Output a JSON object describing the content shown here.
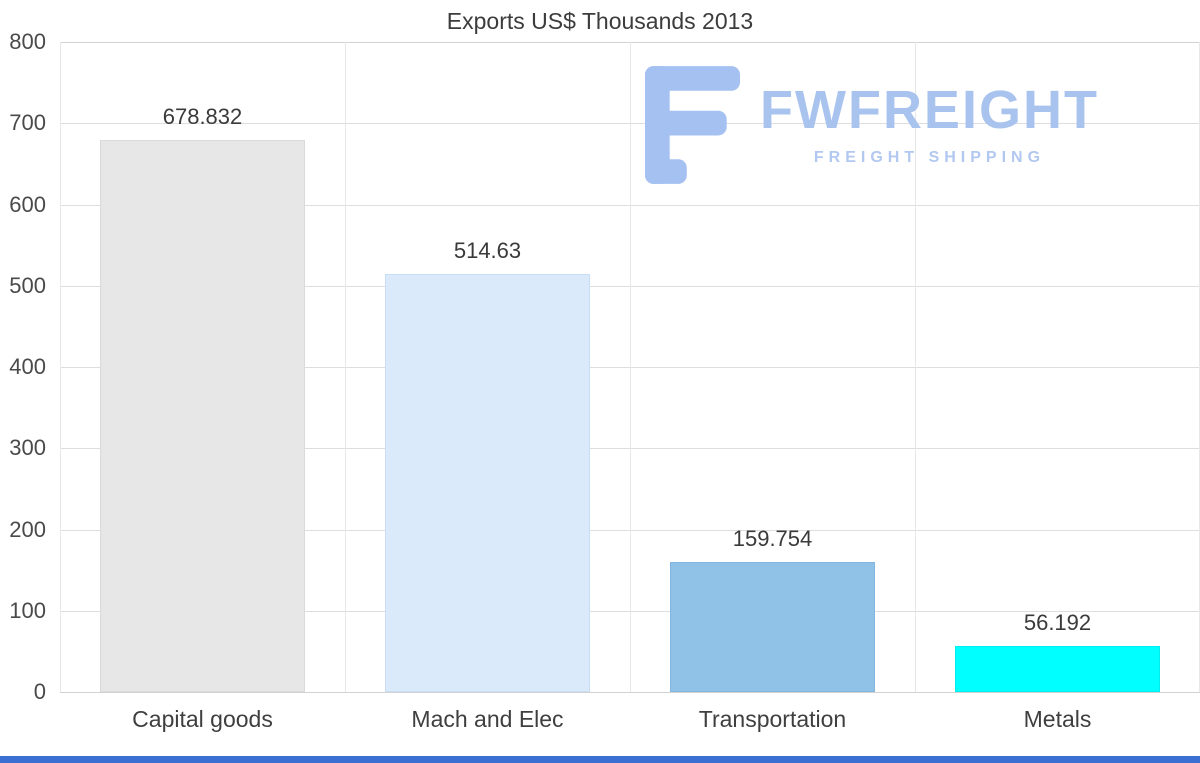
{
  "title": "Exports US$ Thousands 2013",
  "chart_data": {
    "type": "bar",
    "title": "Exports US$ Thousands 2013",
    "categories": [
      "Capital goods",
      "Mach and Elec",
      "Transportation",
      "Metals"
    ],
    "values": [
      678.832,
      514.63,
      159.754,
      56.192
    ],
    "value_labels": [
      "678.832",
      "514.63",
      "159.754",
      "56.192"
    ],
    "bar_colors": [
      "#e7e7e7",
      "#daeafb",
      "#90c2e7",
      "#00ffff"
    ],
    "bar_border_colors": [
      "#dadada",
      "#c9def4",
      "#81b6e0",
      "#00eded"
    ],
    "xlabel": "",
    "ylabel": "",
    "ylim": [
      0,
      800
    ],
    "yticks": [
      0,
      100,
      200,
      300,
      400,
      500,
      600,
      700,
      800
    ],
    "grid": true,
    "legend": "none",
    "background": "#ffffff"
  },
  "watermark": {
    "brand": "FWFREIGHT",
    "tagline": "FREIGHT SHIPPING",
    "color": "#a9c3ef",
    "tagline_color": "#b3c8f1",
    "glyph_color": "#a4c1f2"
  },
  "footer": {
    "strip_color": "#3b6fd1"
  }
}
